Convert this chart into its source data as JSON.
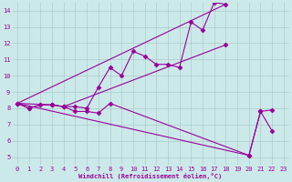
{
  "xlabel": "Windchill (Refroidissement éolien,°C)",
  "xlim": [
    -0.5,
    23.5
  ],
  "ylim": [
    4.5,
    14.5
  ],
  "yticks": [
    5,
    6,
    7,
    8,
    9,
    10,
    11,
    12,
    13,
    14
  ],
  "xticks": [
    0,
    1,
    2,
    3,
    4,
    5,
    6,
    7,
    8,
    9,
    10,
    11,
    12,
    13,
    14,
    15,
    16,
    17,
    18,
    19,
    20,
    21,
    22,
    23
  ],
  "bg_color": "#cce9e9",
  "line_color": "#990099",
  "grid_color": "#bbdddd",
  "series": [
    {
      "x": [
        0,
        1,
        2,
        3,
        4,
        5,
        6,
        7,
        8,
        9,
        10,
        11,
        12,
        13,
        14,
        15,
        16,
        17,
        18
      ],
      "y": [
        8.3,
        8.0,
        8.2,
        8.2,
        8.1,
        8.1,
        8.0,
        9.3,
        10.5,
        10.0,
        11.5,
        11.2,
        10.7,
        10.7,
        10.5,
        13.3,
        12.8,
        14.5,
        14.4
      ],
      "marker": "D",
      "markersize": 2.5,
      "linestyle": "-"
    },
    {
      "x": [
        0,
        18
      ],
      "y": [
        8.3,
        14.4
      ],
      "marker": "",
      "markersize": 0,
      "linestyle": "-"
    },
    {
      "x": [
        0,
        3,
        4,
        18
      ],
      "y": [
        8.3,
        8.2,
        8.1,
        11.9
      ],
      "marker": "D",
      "markersize": 2.5,
      "linestyle": "-"
    },
    {
      "x": [
        0,
        1,
        2,
        3,
        4,
        5,
        6,
        7,
        8,
        20,
        21,
        22
      ],
      "y": [
        8.3,
        8.0,
        8.2,
        8.2,
        8.1,
        7.8,
        7.8,
        7.7,
        8.3,
        5.1,
        7.8,
        7.9
      ],
      "marker": "D",
      "markersize": 2.5,
      "linestyle": "-"
    },
    {
      "x": [
        0,
        20
      ],
      "y": [
        8.3,
        5.1
      ],
      "marker": "",
      "markersize": 0,
      "linestyle": "-"
    },
    {
      "x": [
        20,
        21,
        22
      ],
      "y": [
        5.1,
        7.8,
        6.6
      ],
      "marker": "D",
      "markersize": 2.5,
      "linestyle": "-"
    }
  ]
}
